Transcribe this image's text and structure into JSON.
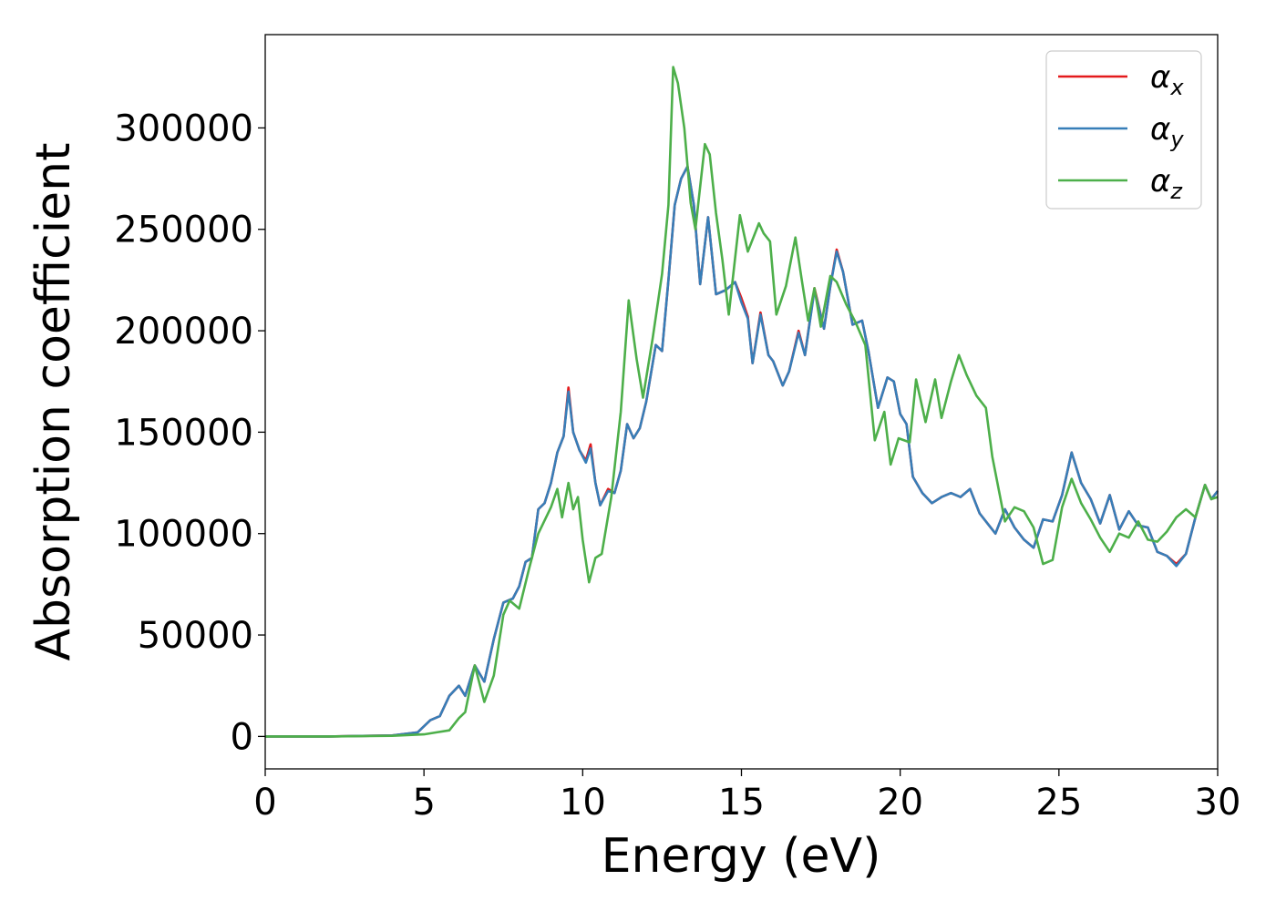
{
  "chart_data": {
    "type": "line",
    "title": "",
    "xlabel": "Energy (eV)",
    "ylabel": "Absorption coefficient",
    "xlim": [
      0,
      30
    ],
    "ylim": [
      -16000,
      346000
    ],
    "xticks": [
      0,
      5,
      10,
      15,
      20,
      25,
      30
    ],
    "yticks": [
      0,
      50000,
      100000,
      150000,
      200000,
      250000,
      300000
    ],
    "grid": false,
    "legend": {
      "placement": "top-right"
    },
    "series": [
      {
        "name": "αx",
        "base": "α",
        "sub": "x",
        "color": "#e41a1c",
        "points": [
          [
            0,
            0
          ],
          [
            2,
            0
          ],
          [
            4,
            500
          ],
          [
            4.8,
            2000
          ],
          [
            5.2,
            8000
          ],
          [
            5.5,
            10000
          ],
          [
            5.8,
            20000
          ],
          [
            6.1,
            25000
          ],
          [
            6.3,
            20000
          ],
          [
            6.6,
            35000
          ],
          [
            6.9,
            27000
          ],
          [
            7.2,
            48000
          ],
          [
            7.5,
            66000
          ],
          [
            7.8,
            68000
          ],
          [
            8.0,
            74000
          ],
          [
            8.2,
            86000
          ],
          [
            8.4,
            88000
          ],
          [
            8.6,
            112000
          ],
          [
            8.8,
            115000
          ],
          [
            9.0,
            125000
          ],
          [
            9.2,
            140000
          ],
          [
            9.4,
            148000
          ],
          [
            9.55,
            172000
          ],
          [
            9.7,
            150000
          ],
          [
            9.9,
            141000
          ],
          [
            10.1,
            136000
          ],
          [
            10.25,
            144000
          ],
          [
            10.4,
            125000
          ],
          [
            10.55,
            114000
          ],
          [
            10.8,
            122000
          ],
          [
            11.0,
            120000
          ],
          [
            11.2,
            131000
          ],
          [
            11.4,
            154000
          ],
          [
            11.6,
            147000
          ],
          [
            11.8,
            152000
          ],
          [
            12.0,
            165000
          ],
          [
            12.3,
            193000
          ],
          [
            12.5,
            190000
          ],
          [
            12.7,
            225000
          ],
          [
            12.9,
            262000
          ],
          [
            13.1,
            275000
          ],
          [
            13.3,
            281000
          ],
          [
            13.5,
            262000
          ],
          [
            13.7,
            223000
          ],
          [
            13.95,
            256000
          ],
          [
            14.2,
            218000
          ],
          [
            14.5,
            220000
          ],
          [
            14.8,
            224000
          ],
          [
            15.0,
            216000
          ],
          [
            15.2,
            207000
          ],
          [
            15.35,
            184000
          ],
          [
            15.6,
            209000
          ],
          [
            15.85,
            188000
          ],
          [
            16.0,
            185000
          ],
          [
            16.3,
            173000
          ],
          [
            16.5,
            180000
          ],
          [
            16.8,
            200000
          ],
          [
            17.0,
            188000
          ],
          [
            17.3,
            221000
          ],
          [
            17.6,
            201000
          ],
          [
            17.8,
            222000
          ],
          [
            18.0,
            240000
          ],
          [
            18.2,
            229000
          ],
          [
            18.5,
            203000
          ],
          [
            18.8,
            205000
          ],
          [
            19.0,
            190000
          ],
          [
            19.3,
            162000
          ],
          [
            19.6,
            177000
          ],
          [
            19.8,
            175000
          ],
          [
            20.0,
            159000
          ],
          [
            20.2,
            154000
          ],
          [
            20.4,
            128000
          ],
          [
            20.7,
            120000
          ],
          [
            21.0,
            115000
          ],
          [
            21.3,
            118000
          ],
          [
            21.6,
            120000
          ],
          [
            21.9,
            118000
          ],
          [
            22.2,
            122000
          ],
          [
            22.5,
            110000
          ],
          [
            22.8,
            104000
          ],
          [
            23.0,
            100000
          ],
          [
            23.3,
            112000
          ],
          [
            23.6,
            103000
          ],
          [
            23.9,
            97000
          ],
          [
            24.2,
            93000
          ],
          [
            24.5,
            107000
          ],
          [
            24.8,
            106000
          ],
          [
            25.1,
            119000
          ],
          [
            25.4,
            140000
          ],
          [
            25.7,
            125000
          ],
          [
            26.0,
            117000
          ],
          [
            26.3,
            105000
          ],
          [
            26.6,
            119000
          ],
          [
            26.9,
            102000
          ],
          [
            27.2,
            111000
          ],
          [
            27.5,
            104000
          ],
          [
            27.8,
            103000
          ],
          [
            28.1,
            91000
          ],
          [
            28.4,
            89000
          ],
          [
            28.7,
            85000
          ],
          [
            29.0,
            90000
          ],
          [
            29.3,
            108000
          ],
          [
            29.6,
            124000
          ],
          [
            29.8,
            117000
          ],
          [
            30.0,
            121000
          ]
        ]
      },
      {
        "name": "αy",
        "base": "α",
        "sub": "y",
        "color": "#377eb8",
        "points": [
          [
            0,
            0
          ],
          [
            2,
            0
          ],
          [
            4,
            500
          ],
          [
            4.8,
            2000
          ],
          [
            5.2,
            8000
          ],
          [
            5.5,
            10000
          ],
          [
            5.8,
            20000
          ],
          [
            6.1,
            25000
          ],
          [
            6.3,
            20000
          ],
          [
            6.6,
            35000
          ],
          [
            6.9,
            27000
          ],
          [
            7.2,
            48000
          ],
          [
            7.5,
            66000
          ],
          [
            7.8,
            68000
          ],
          [
            8.0,
            74000
          ],
          [
            8.2,
            86000
          ],
          [
            8.4,
            88000
          ],
          [
            8.6,
            112000
          ],
          [
            8.8,
            115000
          ],
          [
            9.0,
            125000
          ],
          [
            9.2,
            140000
          ],
          [
            9.4,
            148000
          ],
          [
            9.55,
            170000
          ],
          [
            9.7,
            150000
          ],
          [
            9.9,
            141000
          ],
          [
            10.1,
            135000
          ],
          [
            10.25,
            142000
          ],
          [
            10.4,
            125000
          ],
          [
            10.55,
            114000
          ],
          [
            10.8,
            121000
          ],
          [
            11.0,
            120000
          ],
          [
            11.2,
            131000
          ],
          [
            11.4,
            154000
          ],
          [
            11.6,
            147000
          ],
          [
            11.8,
            152000
          ],
          [
            12.0,
            165000
          ],
          [
            12.3,
            193000
          ],
          [
            12.5,
            190000
          ],
          [
            12.7,
            225000
          ],
          [
            12.9,
            262000
          ],
          [
            13.1,
            275000
          ],
          [
            13.3,
            281000
          ],
          [
            13.5,
            262000
          ],
          [
            13.7,
            223000
          ],
          [
            13.95,
            256000
          ],
          [
            14.2,
            218000
          ],
          [
            14.5,
            220000
          ],
          [
            14.8,
            224000
          ],
          [
            15.0,
            214000
          ],
          [
            15.2,
            206000
          ],
          [
            15.35,
            184000
          ],
          [
            15.6,
            208000
          ],
          [
            15.85,
            188000
          ],
          [
            16.0,
            185000
          ],
          [
            16.3,
            173000
          ],
          [
            16.5,
            180000
          ],
          [
            16.8,
            199000
          ],
          [
            17.0,
            188000
          ],
          [
            17.3,
            220000
          ],
          [
            17.6,
            201000
          ],
          [
            17.8,
            222000
          ],
          [
            18.0,
            239000
          ],
          [
            18.2,
            229000
          ],
          [
            18.5,
            203000
          ],
          [
            18.8,
            205000
          ],
          [
            19.0,
            190000
          ],
          [
            19.3,
            162000
          ],
          [
            19.6,
            177000
          ],
          [
            19.8,
            175000
          ],
          [
            20.0,
            159000
          ],
          [
            20.2,
            154000
          ],
          [
            20.4,
            128000
          ],
          [
            20.7,
            120000
          ],
          [
            21.0,
            115000
          ],
          [
            21.3,
            118000
          ],
          [
            21.6,
            120000
          ],
          [
            21.9,
            118000
          ],
          [
            22.2,
            122000
          ],
          [
            22.5,
            110000
          ],
          [
            22.8,
            104000
          ],
          [
            23.0,
            100000
          ],
          [
            23.3,
            112000
          ],
          [
            23.6,
            103000
          ],
          [
            23.9,
            97000
          ],
          [
            24.2,
            93000
          ],
          [
            24.5,
            107000
          ],
          [
            24.8,
            106000
          ],
          [
            25.1,
            119000
          ],
          [
            25.4,
            140000
          ],
          [
            25.7,
            125000
          ],
          [
            26.0,
            117000
          ],
          [
            26.3,
            105000
          ],
          [
            26.6,
            119000
          ],
          [
            26.9,
            102000
          ],
          [
            27.2,
            111000
          ],
          [
            27.5,
            104000
          ],
          [
            27.8,
            103000
          ],
          [
            28.1,
            91000
          ],
          [
            28.4,
            89000
          ],
          [
            28.7,
            84000
          ],
          [
            29.0,
            90000
          ],
          [
            29.3,
            108000
          ],
          [
            29.6,
            124000
          ],
          [
            29.8,
            117000
          ],
          [
            30.0,
            121000
          ]
        ]
      },
      {
        "name": "αz",
        "base": "α",
        "sub": "z",
        "color": "#4daf4a",
        "points": [
          [
            0,
            0
          ],
          [
            2,
            0
          ],
          [
            4,
            300
          ],
          [
            5.0,
            1000
          ],
          [
            5.4,
            2000
          ],
          [
            5.8,
            3000
          ],
          [
            6.1,
            9000
          ],
          [
            6.3,
            12000
          ],
          [
            6.6,
            35000
          ],
          [
            6.9,
            17000
          ],
          [
            7.2,
            30000
          ],
          [
            7.5,
            60000
          ],
          [
            7.7,
            67000
          ],
          [
            8.0,
            63000
          ],
          [
            8.3,
            82000
          ],
          [
            8.6,
            100000
          ],
          [
            9.0,
            113000
          ],
          [
            9.2,
            122000
          ],
          [
            9.35,
            108000
          ],
          [
            9.55,
            125000
          ],
          [
            9.7,
            112000
          ],
          [
            9.85,
            118000
          ],
          [
            10.0,
            97000
          ],
          [
            10.2,
            76000
          ],
          [
            10.4,
            88000
          ],
          [
            10.6,
            90000
          ],
          [
            10.9,
            118000
          ],
          [
            11.2,
            160000
          ],
          [
            11.45,
            215000
          ],
          [
            11.7,
            186000
          ],
          [
            11.9,
            167000
          ],
          [
            12.2,
            196000
          ],
          [
            12.5,
            228000
          ],
          [
            12.7,
            262000
          ],
          [
            12.85,
            330000
          ],
          [
            13.0,
            322000
          ],
          [
            13.2,
            300000
          ],
          [
            13.4,
            263000
          ],
          [
            13.55,
            250000
          ],
          [
            13.85,
            292000
          ],
          [
            14.0,
            287000
          ],
          [
            14.2,
            258000
          ],
          [
            14.4,
            235000
          ],
          [
            14.6,
            208000
          ],
          [
            14.95,
            257000
          ],
          [
            15.2,
            239000
          ],
          [
            15.55,
            253000
          ],
          [
            15.7,
            248000
          ],
          [
            15.9,
            244000
          ],
          [
            16.1,
            208000
          ],
          [
            16.4,
            222000
          ],
          [
            16.7,
            246000
          ],
          [
            16.9,
            225000
          ],
          [
            17.1,
            205000
          ],
          [
            17.3,
            221000
          ],
          [
            17.5,
            202000
          ],
          [
            17.8,
            227000
          ],
          [
            18.0,
            224000
          ],
          [
            18.3,
            213000
          ],
          [
            18.6,
            204000
          ],
          [
            18.9,
            193000
          ],
          [
            19.2,
            146000
          ],
          [
            19.5,
            160000
          ],
          [
            19.7,
            134000
          ],
          [
            19.95,
            147000
          ],
          [
            20.3,
            145000
          ],
          [
            20.5,
            176000
          ],
          [
            20.8,
            155000
          ],
          [
            21.1,
            176000
          ],
          [
            21.3,
            157000
          ],
          [
            21.6,
            175000
          ],
          [
            21.85,
            188000
          ],
          [
            22.1,
            178000
          ],
          [
            22.4,
            168000
          ],
          [
            22.7,
            162000
          ],
          [
            22.9,
            138000
          ],
          [
            23.3,
            106000
          ],
          [
            23.6,
            113000
          ],
          [
            23.9,
            111000
          ],
          [
            24.2,
            103000
          ],
          [
            24.5,
            85000
          ],
          [
            24.8,
            87000
          ],
          [
            25.1,
            113000
          ],
          [
            25.4,
            127000
          ],
          [
            25.7,
            115000
          ],
          [
            26.0,
            107000
          ],
          [
            26.3,
            98000
          ],
          [
            26.6,
            91000
          ],
          [
            26.9,
            100000
          ],
          [
            27.2,
            98000
          ],
          [
            27.5,
            106000
          ],
          [
            27.8,
            97000
          ],
          [
            28.1,
            96000
          ],
          [
            28.4,
            101000
          ],
          [
            28.7,
            108000
          ],
          [
            29.0,
            112000
          ],
          [
            29.3,
            108000
          ],
          [
            29.6,
            124000
          ],
          [
            29.8,
            117000
          ],
          [
            30.0,
            118000
          ]
        ]
      }
    ]
  }
}
